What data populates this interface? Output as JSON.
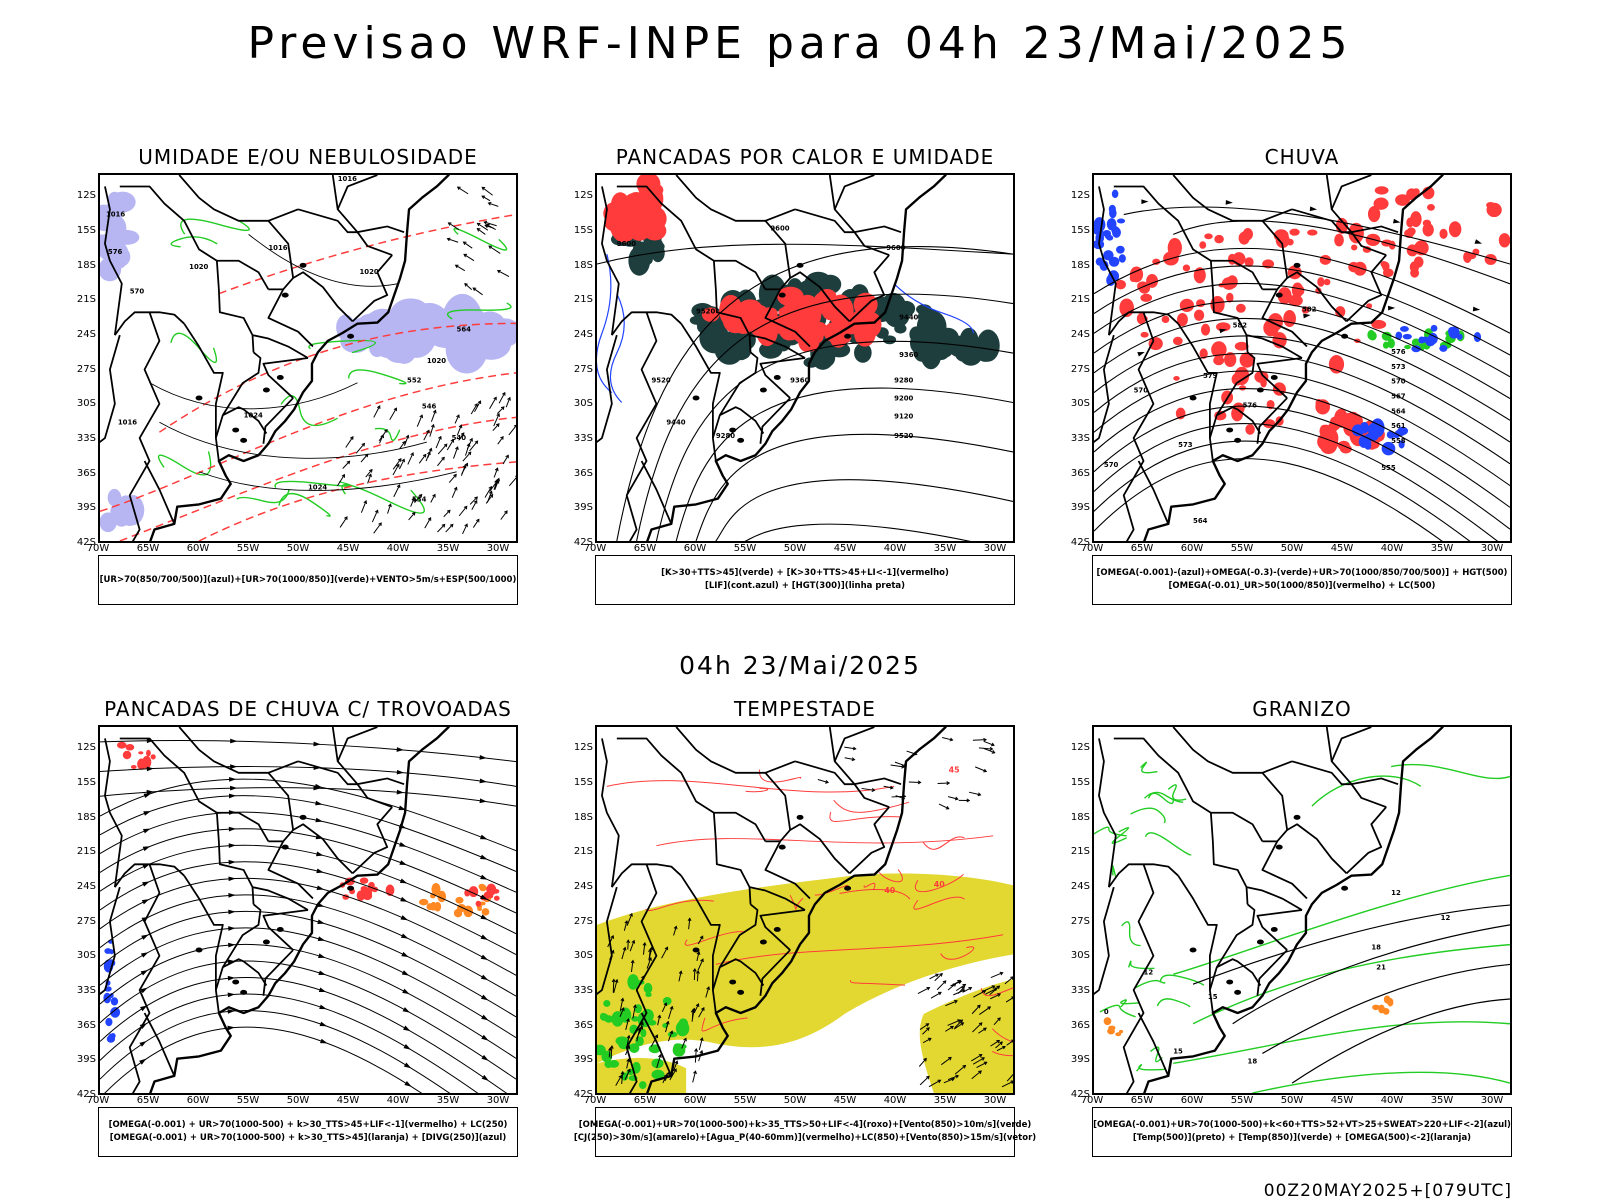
{
  "title": "Previsao WRF-INPE  para 04h 23/Mai/2025",
  "subtitle": "04h 23/Mai/2025",
  "footer": "00Z20MAY2025+[079UTC]",
  "lat_labels": [
    "12S",
    "15S",
    "18S",
    "21S",
    "24S",
    "27S",
    "30S",
    "33S",
    "36S",
    "39S",
    "42S"
  ],
  "lon_labels": [
    "70W",
    "65W",
    "60W",
    "55W",
    "50W",
    "45W",
    "40W",
    "35W",
    "30W"
  ],
  "panels": [
    {
      "title": "UMIDADE E/OU NEBULOSIDADE",
      "legend": [
        "[UR>70(850/700/500)](azul)+[UR>70(1000/850)](verde)+VENTO>5m/s+ESP(500/1000)"
      ],
      "contour_labels": [
        "1016",
        "1016",
        "1016",
        "1020",
        "1020",
        "1024",
        "1020",
        "1024",
        "1016",
        "564",
        "552",
        "546",
        "540",
        "534",
        "576",
        "570"
      ]
    },
    {
      "title": "PANCADAS POR CALOR E UMIDADE",
      "legend": [
        "[K>30+TTS>45](verde)  +  [K>30+TTS>45+LI<-1](vermelho)",
        "[LIF](cont.azul)  +  [HGT(300)](linha preta)"
      ],
      "contour_labels": [
        "9600",
        "9600",
        "9600",
        "9520",
        "9520",
        "9440",
        "9360",
        "9280",
        "9200",
        "9120",
        "9520",
        "9440",
        "9360",
        "9280"
      ]
    },
    {
      "title": "CHUVA",
      "legend": [
        "[OMEGA(-0.001)-(azul)+OMEGA(-0.3)-(verde)+UR>70(1000/850/700/500)]  +  HGT(500)",
        "[OMEGA(-0.01)_UR>50(1000/850)](vermelho)  +  LC(500)"
      ],
      "contour_labels": [
        "582",
        "582",
        "579",
        "576",
        "573",
        "570",
        "576",
        "573",
        "570",
        "567",
        "564",
        "561",
        "558",
        "555",
        "570",
        "564"
      ]
    },
    {
      "title": "PANCADAS DE CHUVA C/ TROVOADAS",
      "legend": [
        "[OMEGA(-0.001)  +  UR>70(1000-500)  +  k>30_TTS>45+LIF<-1](vermelho)  +  LC(250)",
        "[OMEGA(-0.001)  +  UR>70(1000-500)  +  k>30_TTS>45](laranja)  +  [DIVG(250)](azul)"
      ],
      "contour_labels": []
    },
    {
      "title": "TEMPESTADE",
      "legend": [
        "[OMEGA(-0.001)+UR>70(1000-500)+k>35_TTS>50+LIF<-4](roxo)+[Vento(850)>10m/s](verde)",
        "[CJ(250)>30m/s](amarelo)+[Agua_P(40-60mm)](vermelho)+LC(850)+[Vento(850)>15m/s](vetor)"
      ],
      "contour_labels": [
        "45",
        "40",
        "40"
      ]
    },
    {
      "title": "GRANIZO",
      "legend": [
        "[OMEGA(-0.001)+UR>70(1000-500)+k<60+TTS>52+VT>25+SWEAT>220+LIF<-2](azul)",
        "[Temp(500)](preto)  +  [Temp(850)](verde)  +  [OMEGA(500)<-2](laranja)"
      ],
      "contour_labels": [
        "12",
        "12",
        "15",
        "18",
        "21",
        "12",
        "15",
        "18",
        "0"
      ]
    }
  ],
  "colors": {
    "coast": "#000000",
    "humid_blue": "#b7b6f2",
    "green": "#22cc22",
    "red": "#ff3b3b",
    "dark_teal": "#1e3e3e",
    "blue": "#2244ff",
    "yellow": "#e3d831",
    "orange": "#ff8822"
  }
}
